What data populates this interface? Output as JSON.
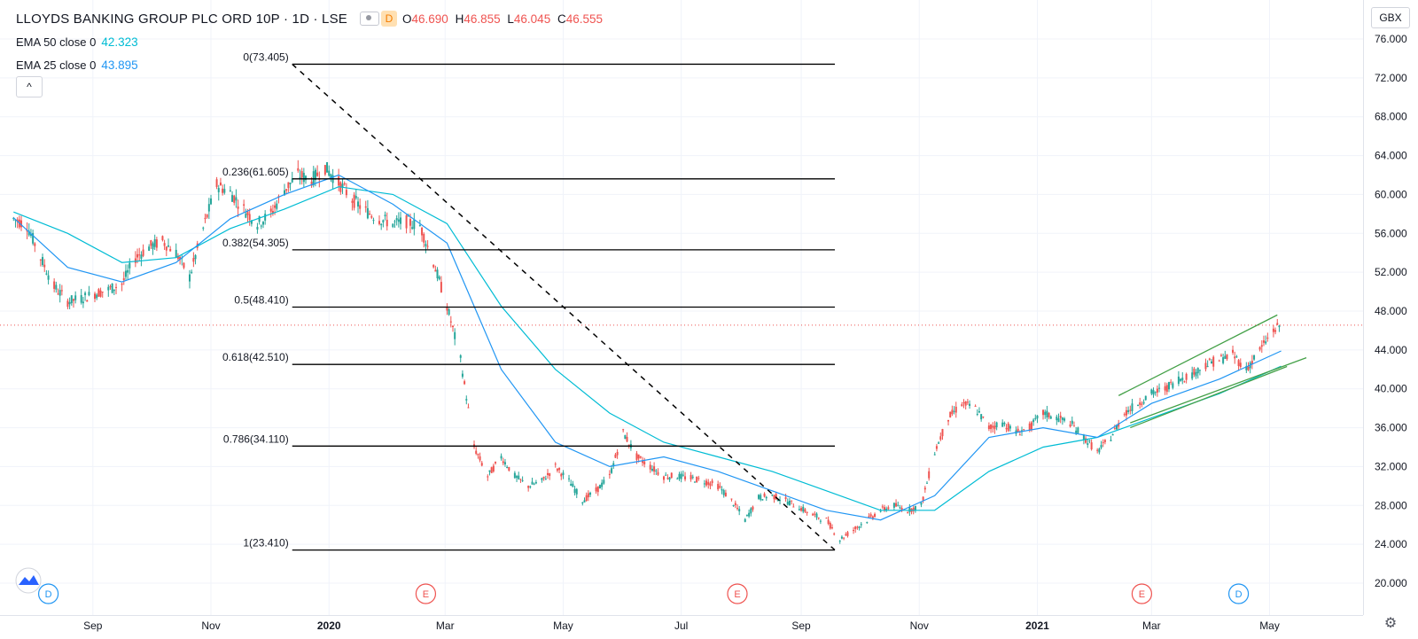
{
  "header": {
    "symbol_title": "LLOYDS BANKING GROUP PLC ORD 10P · 1D · LSE",
    "currency_badge": "D",
    "ohlc": {
      "o_label": "O",
      "o": "46.690",
      "h_label": "H",
      "h": "46.855",
      "l_label": "L",
      "l": "46.045",
      "c_label": "C",
      "c": "46.555"
    }
  },
  "indicators": [
    {
      "label": "EMA 50 close 0",
      "value": "42.323",
      "color": "#00bcd4"
    },
    {
      "label": "EMA 25 close 0",
      "value": "43.895",
      "color": "#2196f3"
    }
  ],
  "collapse_button": "^",
  "currency_button": "GBX",
  "settings_icon": "gear-icon",
  "colors": {
    "up": "#26a69a",
    "down": "#ef5350",
    "ema50": "#00bcd4",
    "ema25": "#2196f3",
    "channel": "#43a047",
    "fib": "#000000"
  },
  "chart_data": {
    "type": "candlestick",
    "price_axis": {
      "min": 20,
      "max": 76,
      "ticks": [
        "20.000",
        "24.000",
        "28.000",
        "32.000",
        "36.000",
        "40.000",
        "44.000",
        "48.000",
        "52.000",
        "56.000",
        "60.000",
        "64.000",
        "68.000",
        "72.000",
        "76.000"
      ]
    },
    "time_axis": {
      "ticks": [
        {
          "label": "Sep",
          "date": "2019-09-01"
        },
        {
          "label": "Nov",
          "date": "2019-11-01"
        },
        {
          "label": "2020",
          "date": "2020-01-01",
          "bold": true
        },
        {
          "label": "Mar",
          "date": "2020-03-01"
        },
        {
          "label": "May",
          "date": "2020-05-01"
        },
        {
          "label": "Jul",
          "date": "2020-07-01"
        },
        {
          "label": "Sep",
          "date": "2020-09-01"
        },
        {
          "label": "Nov",
          "date": "2020-11-01"
        },
        {
          "label": "2021",
          "date": "2021-01-01",
          "bold": true
        },
        {
          "label": "Mar",
          "date": "2021-03-01"
        },
        {
          "label": "May",
          "date": "2021-05-01"
        }
      ]
    },
    "close_series": [
      [
        "2019-07-22",
        57.5
      ],
      [
        "2019-07-29",
        56.8
      ],
      [
        "2019-08-05",
        53.5
      ],
      [
        "2019-08-12",
        50.5
      ],
      [
        "2019-08-19",
        49.0
      ],
      [
        "2019-08-26",
        49.3
      ],
      [
        "2019-09-02",
        49.8
      ],
      [
        "2019-09-09",
        50.2
      ],
      [
        "2019-09-16",
        50.8
      ],
      [
        "2019-09-23",
        53.5
      ],
      [
        "2019-09-30",
        54.6
      ],
      [
        "2019-10-07",
        55.2
      ],
      [
        "2019-10-14",
        54.0
      ],
      [
        "2019-10-21",
        51.5
      ],
      [
        "2019-10-28",
        56.5
      ],
      [
        "2019-11-04",
        61.0
      ],
      [
        "2019-11-11",
        60.2
      ],
      [
        "2019-11-18",
        58.5
      ],
      [
        "2019-11-25",
        57.0
      ],
      [
        "2019-12-02",
        58.0
      ],
      [
        "2019-12-09",
        60.5
      ],
      [
        "2019-12-16",
        62.0
      ],
      [
        "2019-12-23",
        61.5
      ],
      [
        "2019-12-30",
        62.8
      ],
      [
        "2020-01-06",
        61.2
      ],
      [
        "2020-01-13",
        59.5
      ],
      [
        "2020-01-20",
        58.3
      ],
      [
        "2020-01-27",
        57.5
      ],
      [
        "2020-02-03",
        57.0
      ],
      [
        "2020-02-10",
        57.2
      ],
      [
        "2020-02-17",
        56.8
      ],
      [
        "2020-02-24",
        53.0
      ],
      [
        "2020-03-02",
        48.5
      ],
      [
        "2020-03-09",
        43.0
      ],
      [
        "2020-03-16",
        34.0
      ],
      [
        "2020-03-23",
        31.0
      ],
      [
        "2020-03-30",
        33.0
      ],
      [
        "2020-04-06",
        31.0
      ],
      [
        "2020-04-13",
        30.0
      ],
      [
        "2020-04-20",
        30.5
      ],
      [
        "2020-04-27",
        32.0
      ],
      [
        "2020-05-04",
        30.5
      ],
      [
        "2020-05-11",
        28.5
      ],
      [
        "2020-05-18",
        29.5
      ],
      [
        "2020-05-25",
        31.0
      ],
      [
        "2020-06-01",
        35.5
      ],
      [
        "2020-06-08",
        33.0
      ],
      [
        "2020-06-15",
        32.0
      ],
      [
        "2020-06-22",
        31.0
      ],
      [
        "2020-06-29",
        31.0
      ],
      [
        "2020-07-06",
        30.8
      ],
      [
        "2020-07-13",
        30.5
      ],
      [
        "2020-07-20",
        30.0
      ],
      [
        "2020-07-27",
        28.5
      ],
      [
        "2020-08-03",
        26.5
      ],
      [
        "2020-08-10",
        28.8
      ],
      [
        "2020-08-17",
        29.0
      ],
      [
        "2020-08-24",
        28.5
      ],
      [
        "2020-08-31",
        27.8
      ],
      [
        "2020-09-07",
        27.0
      ],
      [
        "2020-09-14",
        26.5
      ],
      [
        "2020-09-21",
        24.5
      ],
      [
        "2020-09-28",
        25.5
      ],
      [
        "2020-10-05",
        26.5
      ],
      [
        "2020-10-12",
        27.5
      ],
      [
        "2020-10-19",
        28.0
      ],
      [
        "2020-10-26",
        27.5
      ],
      [
        "2020-11-02",
        28.0
      ],
      [
        "2020-11-09",
        33.5
      ],
      [
        "2020-11-16",
        37.0
      ],
      [
        "2020-11-23",
        38.5
      ],
      [
        "2020-11-30",
        38.0
      ],
      [
        "2020-12-07",
        36.0
      ],
      [
        "2020-12-14",
        36.5
      ],
      [
        "2020-12-21",
        35.5
      ],
      [
        "2020-12-28",
        36.0
      ],
      [
        "2021-01-04",
        37.5
      ],
      [
        "2021-01-11",
        37.0
      ],
      [
        "2021-01-18",
        36.5
      ],
      [
        "2021-01-25",
        35.0
      ],
      [
        "2021-02-01",
        33.5
      ],
      [
        "2021-02-08",
        35.0
      ],
      [
        "2021-02-15",
        37.5
      ],
      [
        "2021-02-22",
        38.5
      ],
      [
        "2021-03-01",
        39.5
      ],
      [
        "2021-03-08",
        40.0
      ],
      [
        "2021-03-15",
        41.0
      ],
      [
        "2021-03-22",
        41.5
      ],
      [
        "2021-03-29",
        42.5
      ],
      [
        "2021-04-05",
        43.0
      ],
      [
        "2021-04-12",
        43.5
      ],
      [
        "2021-04-19",
        42.0
      ],
      [
        "2021-04-26",
        44.0
      ],
      [
        "2021-05-03",
        46.0
      ],
      [
        "2021-05-07",
        46.555
      ]
    ],
    "ema50_series": [
      [
        "2019-07-22",
        58.2
      ],
      [
        "2019-08-19",
        56.0
      ],
      [
        "2019-09-16",
        53.0
      ],
      [
        "2019-10-14",
        53.5
      ],
      [
        "2019-11-11",
        56.5
      ],
      [
        "2019-12-09",
        58.5
      ],
      [
        "2020-01-06",
        60.8
      ],
      [
        "2020-02-03",
        60.0
      ],
      [
        "2020-03-02",
        57.0
      ],
      [
        "2020-03-30",
        48.5
      ],
      [
        "2020-04-27",
        42.0
      ],
      [
        "2020-05-25",
        37.5
      ],
      [
        "2020-06-22",
        34.5
      ],
      [
        "2020-07-20",
        33.0
      ],
      [
        "2020-08-17",
        31.5
      ],
      [
        "2020-09-14",
        29.5
      ],
      [
        "2020-10-12",
        27.5
      ],
      [
        "2020-11-09",
        27.5
      ],
      [
        "2020-12-07",
        31.5
      ],
      [
        "2021-01-04",
        34.0
      ],
      [
        "2021-02-01",
        35.0
      ],
      [
        "2021-03-01",
        37.0
      ],
      [
        "2021-04-05",
        39.5
      ],
      [
        "2021-05-07",
        42.323
      ]
    ],
    "ema25_series": [
      [
        "2019-07-22",
        57.6
      ],
      [
        "2019-08-19",
        52.5
      ],
      [
        "2019-09-16",
        51.0
      ],
      [
        "2019-10-14",
        53.0
      ],
      [
        "2019-11-11",
        57.5
      ],
      [
        "2019-12-09",
        60.0
      ],
      [
        "2020-01-06",
        62.0
      ],
      [
        "2020-02-03",
        59.0
      ],
      [
        "2020-03-02",
        55.0
      ],
      [
        "2020-03-30",
        42.0
      ],
      [
        "2020-04-27",
        34.5
      ],
      [
        "2020-05-25",
        32.0
      ],
      [
        "2020-06-22",
        33.0
      ],
      [
        "2020-07-20",
        31.5
      ],
      [
        "2020-08-17",
        29.5
      ],
      [
        "2020-09-14",
        27.5
      ],
      [
        "2020-10-12",
        26.5
      ],
      [
        "2020-11-09",
        29.0
      ],
      [
        "2020-12-07",
        35.0
      ],
      [
        "2021-01-04",
        36.0
      ],
      [
        "2021-02-01",
        35.0
      ],
      [
        "2021-03-01",
        38.5
      ],
      [
        "2021-04-05",
        41.0
      ],
      [
        "2021-05-07",
        43.895
      ]
    ],
    "fibonacci": {
      "start_date": "2019-12-13",
      "end_date": "2020-09-23",
      "line_end_date": "2020-09-23",
      "levels": [
        {
          "label": "0(73.405)",
          "value": 73.405
        },
        {
          "label": "0.236(61.605)",
          "value": 61.605
        },
        {
          "label": "0.382(54.305)",
          "value": 54.305
        },
        {
          "label": "0.5(48.410)",
          "value": 48.41
        },
        {
          "label": "0.618(42.510)",
          "value": 42.51
        },
        {
          "label": "0.786(34.110)",
          "value": 34.11
        },
        {
          "label": "1(23.410)",
          "value": 23.41
        }
      ]
    },
    "channel": {
      "upper": [
        [
          "2021-02-12",
          39.3
        ],
        [
          "2021-05-05",
          47.6
        ]
      ],
      "lower": [
        [
          "2021-02-18",
          36.5
        ],
        [
          "2021-05-20",
          43.2
        ]
      ],
      "mid": [
        [
          "2021-02-18",
          36.0
        ],
        [
          "2021-05-10",
          42.3
        ]
      ]
    },
    "last_price": 46.555,
    "event_markers": [
      {
        "label": "D",
        "date": "2019-08-09",
        "kind": "dividend"
      },
      {
        "label": "E",
        "date": "2020-02-20",
        "kind": "earnings"
      },
      {
        "label": "E",
        "date": "2020-07-30",
        "kind": "earnings"
      },
      {
        "label": "E",
        "date": "2021-02-24",
        "kind": "earnings"
      },
      {
        "label": "D",
        "date": "2021-04-15",
        "kind": "dividend"
      }
    ]
  }
}
